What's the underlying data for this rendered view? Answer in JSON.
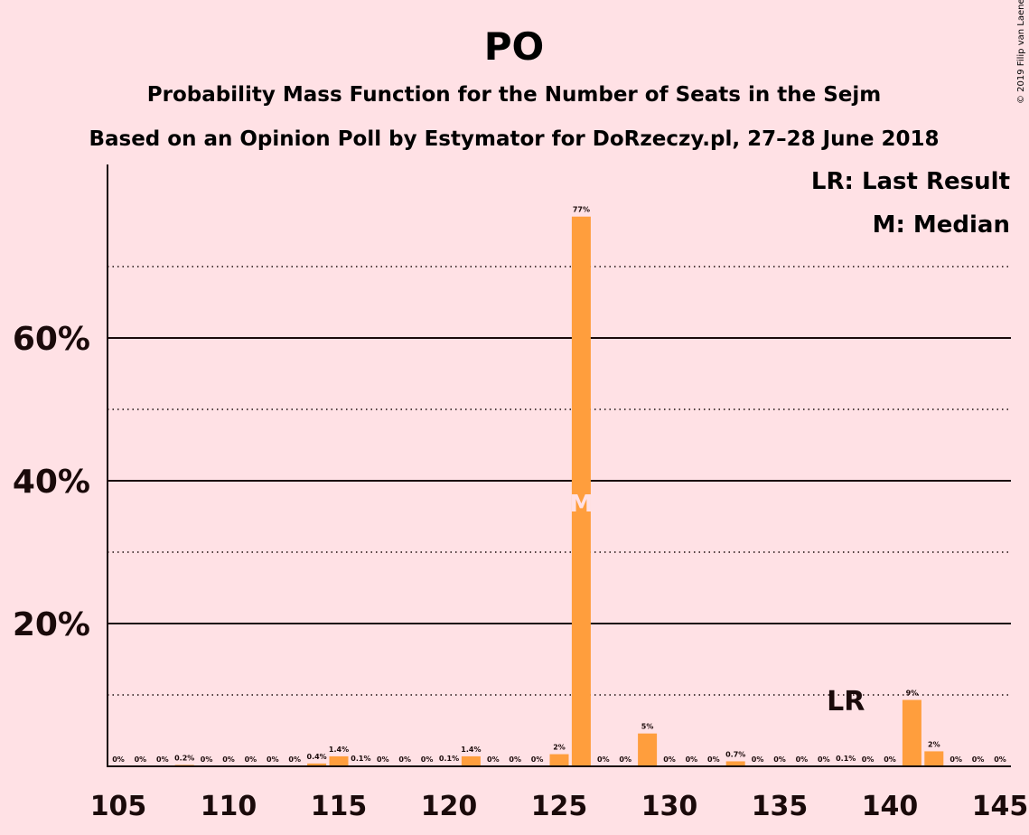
{
  "chart_data": {
    "type": "bar",
    "title": "PO",
    "subtitle1": "Probability Mass Function for the Number of Seats in the Sejm",
    "subtitle2": "Based on an Opinion Poll by Estymator for DoRzeczy.pl, 27–28 June 2018",
    "copyright": "© 2019 Filip van Laenen",
    "xlabel": "",
    "ylabel": "",
    "x_range": [
      105,
      145
    ],
    "x_ticks": [
      105,
      110,
      115,
      120,
      125,
      130,
      135,
      140,
      145
    ],
    "ylim": [
      0,
      0.8
    ],
    "y_ticks_major": [
      {
        "value": 0.2,
        "label": "20%"
      },
      {
        "value": 0.4,
        "label": "40%"
      },
      {
        "value": 0.6,
        "label": "60%"
      }
    ],
    "y_gridlines_minor": [
      0.1,
      0.3,
      0.5,
      0.7
    ],
    "bars": [
      {
        "seats": 105,
        "value": 0.0,
        "label": "0%"
      },
      {
        "seats": 106,
        "value": 0.0,
        "label": "0%"
      },
      {
        "seats": 107,
        "value": 0.0,
        "label": "0%"
      },
      {
        "seats": 108,
        "value": 0.002,
        "label": "0.2%"
      },
      {
        "seats": 109,
        "value": 0.0,
        "label": "0%"
      },
      {
        "seats": 110,
        "value": 0.0,
        "label": "0%"
      },
      {
        "seats": 111,
        "value": 0.0,
        "label": "0%"
      },
      {
        "seats": 112,
        "value": 0.0,
        "label": "0%"
      },
      {
        "seats": 113,
        "value": 0.0,
        "label": "0%"
      },
      {
        "seats": 114,
        "value": 0.004,
        "label": "0.4%"
      },
      {
        "seats": 115,
        "value": 0.014,
        "label": "1.4%"
      },
      {
        "seats": 116,
        "value": 0.001,
        "label": "0.1%"
      },
      {
        "seats": 117,
        "value": 0.0,
        "label": "0%"
      },
      {
        "seats": 118,
        "value": 0.0,
        "label": "0%"
      },
      {
        "seats": 119,
        "value": 0.0,
        "label": "0%"
      },
      {
        "seats": 120,
        "value": 0.001,
        "label": "0.1%"
      },
      {
        "seats": 121,
        "value": 0.014,
        "label": "1.4%"
      },
      {
        "seats": 122,
        "value": 0.0,
        "label": "0%"
      },
      {
        "seats": 123,
        "value": 0.0,
        "label": "0%"
      },
      {
        "seats": 124,
        "value": 0.0,
        "label": "0%"
      },
      {
        "seats": 125,
        "value": 0.017,
        "label": "2%"
      },
      {
        "seats": 126,
        "value": 0.77,
        "label": "77%"
      },
      {
        "seats": 127,
        "value": 0.0,
        "label": "0%"
      },
      {
        "seats": 128,
        "value": 0.0,
        "label": "0%"
      },
      {
        "seats": 129,
        "value": 0.046,
        "label": "5%"
      },
      {
        "seats": 130,
        "value": 0.0,
        "label": "0%"
      },
      {
        "seats": 131,
        "value": 0.0,
        "label": "0%"
      },
      {
        "seats": 132,
        "value": 0.0,
        "label": "0%"
      },
      {
        "seats": 133,
        "value": 0.007,
        "label": "0.7%"
      },
      {
        "seats": 134,
        "value": 0.0,
        "label": "0%"
      },
      {
        "seats": 135,
        "value": 0.0,
        "label": "0%"
      },
      {
        "seats": 136,
        "value": 0.0,
        "label": "0%"
      },
      {
        "seats": 137,
        "value": 0.0,
        "label": "0%"
      },
      {
        "seats": 138,
        "value": 0.001,
        "label": "0.1%"
      },
      {
        "seats": 139,
        "value": 0.0,
        "label": "0%"
      },
      {
        "seats": 140,
        "value": 0.0,
        "label": "0%"
      },
      {
        "seats": 141,
        "value": 0.093,
        "label": "9%"
      },
      {
        "seats": 142,
        "value": 0.021,
        "label": "2%"
      },
      {
        "seats": 143,
        "value": 0.0,
        "label": "0%"
      },
      {
        "seats": 144,
        "value": 0.0,
        "label": "0%"
      },
      {
        "seats": 145,
        "value": 0.0,
        "label": "0%"
      }
    ],
    "median": {
      "seats": 126,
      "marker": "M",
      "y_position": 0.38
    },
    "last_result": {
      "seats": 138,
      "marker": "LR"
    },
    "legend": {
      "placement": "top-right",
      "items": [
        "LR: Last Result",
        "M: Median"
      ]
    },
    "colors": {
      "background": "#ffe1e5",
      "bar": "#ff9e3d",
      "text": "#1a0a0a",
      "median_marker": "#ffe1e5"
    }
  }
}
